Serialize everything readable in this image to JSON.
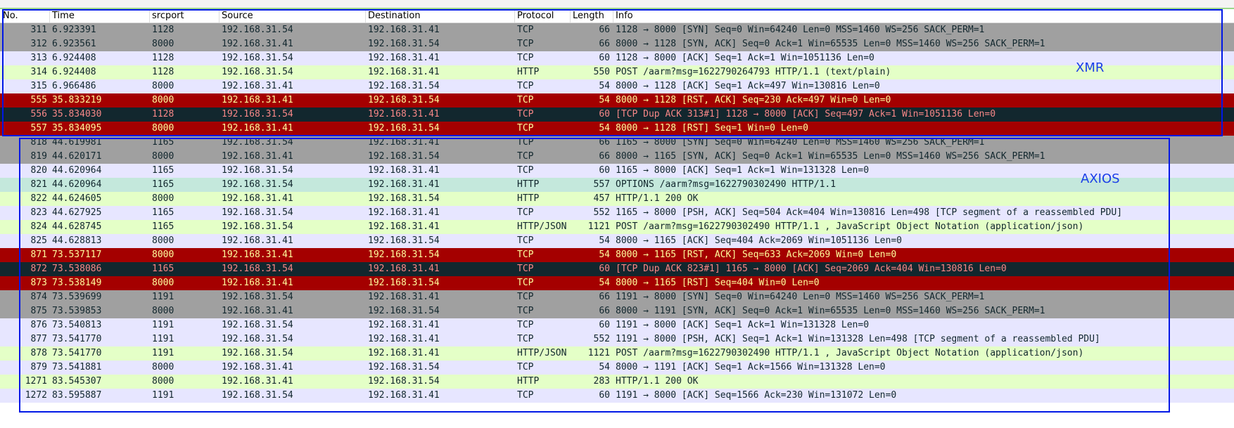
{
  "header": {
    "columns": [
      "No.",
      "Time",
      "srcport",
      "Source",
      "Destination",
      "Protocol",
      "Length",
      "Info"
    ]
  },
  "rows": [
    [
      "311",
      "6.923391",
      "1128",
      "192.168.31.54",
      "192.168.31.41",
      "TCP",
      "66",
      "1128 → 8000 [SYN] Seq=0 Win=64240 Len=0 MSS=1460 WS=256 SACK_PERM=1"
    ],
    [
      "312",
      "6.923561",
      "8000",
      "192.168.31.41",
      "192.168.31.54",
      "TCP",
      "66",
      "8000 → 1128 [SYN, ACK] Seq=0 Ack=1 Win=65535 Len=0 MSS=1460 WS=256 SACK_PERM=1"
    ],
    [
      "313",
      "6.924408",
      "1128",
      "192.168.31.54",
      "192.168.31.41",
      "TCP",
      "60",
      "1128 → 8000 [ACK] Seq=1 Ack=1 Win=1051136 Len=0"
    ],
    [
      "314",
      "6.924408",
      "1128",
      "192.168.31.54",
      "192.168.31.41",
      "HTTP",
      "550",
      "POST /aarm?msg=1622790264793 HTTP/1.1  (text/plain)"
    ],
    [
      "315",
      "6.966486",
      "8000",
      "192.168.31.41",
      "192.168.31.54",
      "TCP",
      "54",
      "8000 → 1128 [ACK] Seq=1 Ack=497 Win=130816 Len=0"
    ],
    [
      "555",
      "35.833219",
      "8000",
      "192.168.31.41",
      "192.168.31.54",
      "TCP",
      "54",
      "8000 → 1128 [RST, ACK] Seq=230 Ack=497 Win=0 Len=0"
    ],
    [
      "556",
      "35.834030",
      "1128",
      "192.168.31.54",
      "192.168.31.41",
      "TCP",
      "60",
      "[TCP Dup ACK 313#1] 1128 → 8000 [ACK] Seq=497 Ack=1 Win=1051136 Len=0"
    ],
    [
      "557",
      "35.834095",
      "8000",
      "192.168.31.41",
      "192.168.31.54",
      "TCP",
      "54",
      "8000 → 1128 [RST] Seq=1 Win=0 Len=0"
    ],
    [
      "818",
      "44.619981",
      "1165",
      "192.168.31.54",
      "192.168.31.41",
      "TCP",
      "66",
      "1165 → 8000 [SYN] Seq=0 Win=64240 Len=0 MSS=1460 WS=256 SACK_PERM=1"
    ],
    [
      "819",
      "44.620171",
      "8000",
      "192.168.31.41",
      "192.168.31.54",
      "TCP",
      "66",
      "8000 → 1165 [SYN, ACK] Seq=0 Ack=1 Win=65535 Len=0 MSS=1460 WS=256 SACK_PERM=1"
    ],
    [
      "820",
      "44.620964",
      "1165",
      "192.168.31.54",
      "192.168.31.41",
      "TCP",
      "60",
      "1165 → 8000 [ACK] Seq=1 Ack=1 Win=131328 Len=0"
    ],
    [
      "821",
      "44.620964",
      "1165",
      "192.168.31.54",
      "192.168.31.41",
      "HTTP",
      "557",
      "OPTIONS /aarm?msg=1622790302490 HTTP/1.1"
    ],
    [
      "822",
      "44.624605",
      "8000",
      "192.168.31.41",
      "192.168.31.54",
      "HTTP",
      "457",
      "HTTP/1.1 200 OK"
    ],
    [
      "823",
      "44.627925",
      "1165",
      "192.168.31.54",
      "192.168.31.41",
      "TCP",
      "552",
      "1165 → 8000 [PSH, ACK] Seq=504 Ack=404 Win=130816 Len=498 [TCP segment of a reassembled PDU]"
    ],
    [
      "824",
      "44.628745",
      "1165",
      "192.168.31.54",
      "192.168.31.41",
      "HTTP/JSON",
      "1121",
      "POST /aarm?msg=1622790302490 HTTP/1.1 , JavaScript Object Notation (application/json)"
    ],
    [
      "825",
      "44.628813",
      "8000",
      "192.168.31.41",
      "192.168.31.54",
      "TCP",
      "54",
      "8000 → 1165 [ACK] Seq=404 Ack=2069 Win=1051136 Len=0"
    ],
    [
      "871",
      "73.537117",
      "8000",
      "192.168.31.41",
      "192.168.31.54",
      "TCP",
      "54",
      "8000 → 1165 [RST, ACK] Seq=633 Ack=2069 Win=0 Len=0"
    ],
    [
      "872",
      "73.538086",
      "1165",
      "192.168.31.54",
      "192.168.31.41",
      "TCP",
      "60",
      "[TCP Dup ACK 823#1] 1165 → 8000 [ACK] Seq=2069 Ack=404 Win=130816 Len=0"
    ],
    [
      "873",
      "73.538149",
      "8000",
      "192.168.31.41",
      "192.168.31.54",
      "TCP",
      "54",
      "8000 → 1165 [RST] Seq=404 Win=0 Len=0"
    ],
    [
      "874",
      "73.539699",
      "1191",
      "192.168.31.54",
      "192.168.31.41",
      "TCP",
      "66",
      "1191 → 8000 [SYN] Seq=0 Win=64240 Len=0 MSS=1460 WS=256 SACK_PERM=1"
    ],
    [
      "875",
      "73.539853",
      "8000",
      "192.168.31.41",
      "192.168.31.54",
      "TCP",
      "66",
      "8000 → 1191 [SYN, ACK] Seq=0 Ack=1 Win=65535 Len=0 MSS=1460 WS=256 SACK_PERM=1"
    ],
    [
      "876",
      "73.540813",
      "1191",
      "192.168.31.54",
      "192.168.31.41",
      "TCP",
      "60",
      "1191 → 8000 [ACK] Seq=1 Ack=1 Win=131328 Len=0"
    ],
    [
      "877",
      "73.541770",
      "1191",
      "192.168.31.54",
      "192.168.31.41",
      "TCP",
      "552",
      "1191 → 8000 [PSH, ACK] Seq=1 Ack=1 Win=131328 Len=498 [TCP segment of a reassembled PDU]"
    ],
    [
      "878",
      "73.541770",
      "1191",
      "192.168.31.54",
      "192.168.31.41",
      "HTTP/JSON",
      "1121",
      "POST /aarm?msg=1622790302490 HTTP/1.1 , JavaScript Object Notation (application/json)"
    ],
    [
      "879",
      "73.541881",
      "8000",
      "192.168.31.41",
      "192.168.31.54",
      "TCP",
      "54",
      "8000 → 1191 [ACK] Seq=1 Ack=1566 Win=131328 Len=0"
    ],
    [
      "1271",
      "83.545307",
      "8000",
      "192.168.31.41",
      "192.168.31.54",
      "HTTP",
      "283",
      "HTTP/1.1 200 OK"
    ],
    [
      "1272",
      "83.595887",
      "1191",
      "192.168.31.54",
      "192.168.31.41",
      "TCP",
      "60",
      "1191 → 8000 [ACK] Seq=1566 Ack=230 Win=131072 Len=0"
    ]
  ],
  "annotations": {
    "xmr": "XMR",
    "axios": "AXIOS"
  }
}
